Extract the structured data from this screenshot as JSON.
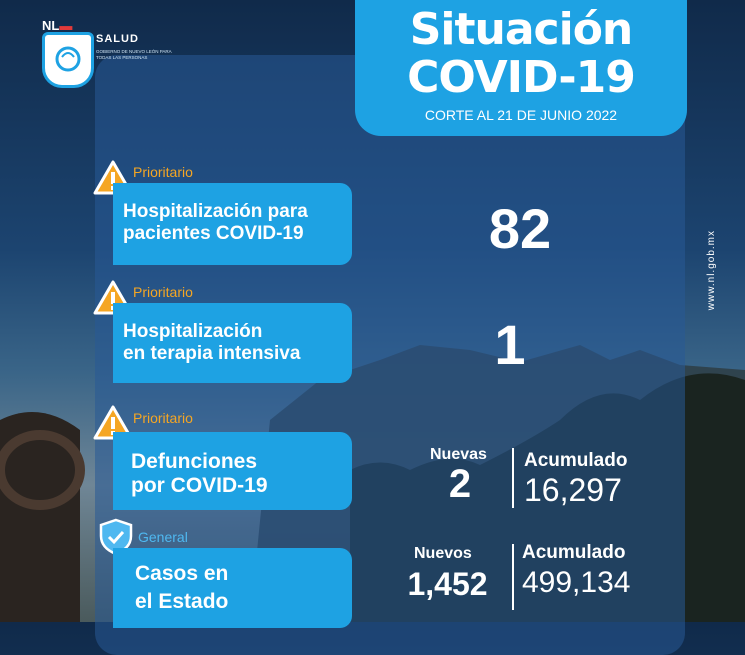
{
  "brand": {
    "logo_text_nl": "NL",
    "logo_text_red": "▬",
    "agency": "SALUD",
    "tagline": "GOBIERNO DE NUEVO LEÓN PARA TODAS LAS PERSONAS"
  },
  "header": {
    "title_line1": "Situación",
    "title_line2": "COVID-19",
    "subtitle": "CORTE AL 21 DE JUNIO 2022"
  },
  "colors": {
    "accent_blue": "#1ea2e3",
    "warning_orange": "#f5a623",
    "general_blue": "#4fb8f0"
  },
  "indicators": [
    {
      "tag": "Prioritario",
      "icon": "warning-icon",
      "label_line1": "Hospitalización para",
      "label_line2": "pacientes COVID-19",
      "value": "82"
    },
    {
      "tag": "Prioritario",
      "icon": "warning-icon",
      "label_line1": "Hospitalización",
      "label_line2": "en terapia intensiva",
      "value": "1"
    },
    {
      "tag": "Prioritario",
      "icon": "warning-icon",
      "label_line1": "Defunciones",
      "label_line2": "por COVID-19",
      "new_label": "Nuevas",
      "new_value": "2",
      "total_label": "Acumulado",
      "total_value": "16,297"
    },
    {
      "tag": "General",
      "icon": "shield-check-icon",
      "label_line1": "Casos en",
      "label_line2": "el Estado",
      "new_label": "Nuevos",
      "new_value": "1,452",
      "total_label": "Acumulado",
      "total_value": "499,134"
    }
  ],
  "footer": {
    "url": "www.nl.gob.mx"
  }
}
